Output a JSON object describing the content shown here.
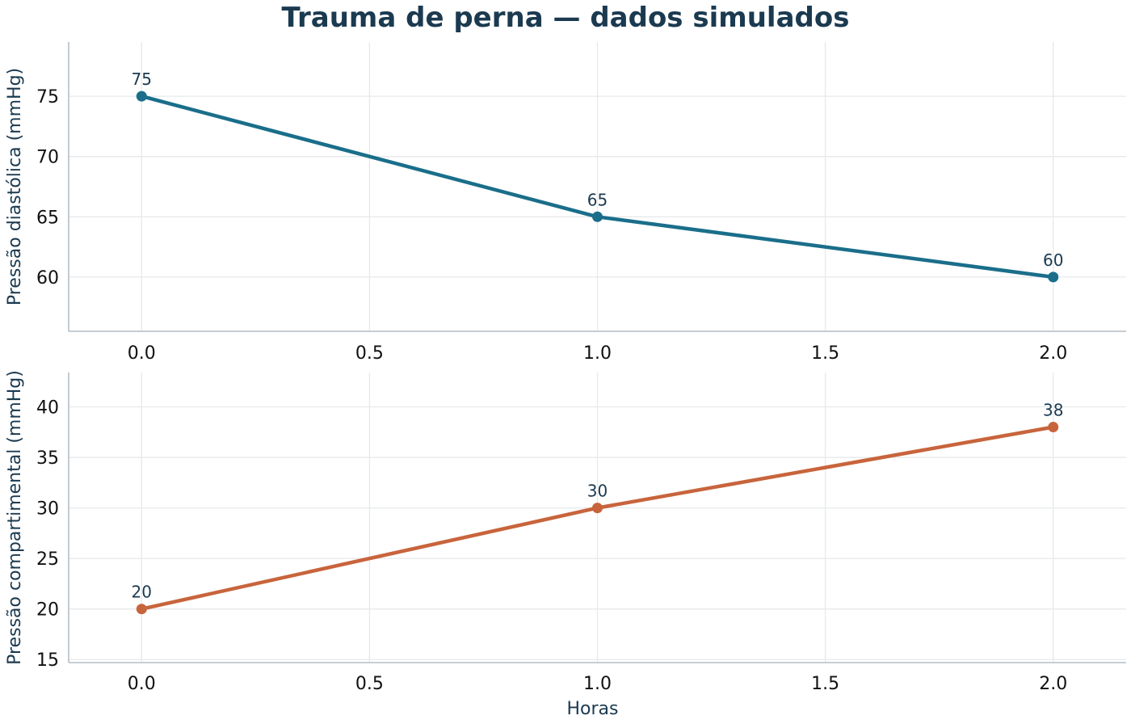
{
  "title": "Trauma de perna — dados simulados",
  "colors": {
    "title": "#1b3a50",
    "series_top": "#1a6e8a",
    "series_bottom": "#c8643c",
    "grid": "#e6e9ec",
    "spine": "#b4bec6"
  },
  "chart_data": [
    {
      "type": "line",
      "x": [
        0.0,
        1.0,
        2.0
      ],
      "series": [
        {
          "values": [
            75,
            65,
            60
          ]
        }
      ],
      "data_labels": [
        "75",
        "65",
        "60"
      ],
      "xlabel": "",
      "ylabel": "Pressão diastólica (mmHg)",
      "xlim": [
        -0.16,
        2.16
      ],
      "ylim": [
        55.5,
        79.5
      ],
      "xticks": [
        0.0,
        0.5,
        1.0,
        1.5,
        2.0
      ],
      "xtick_labels": [
        "0.0",
        "0.5",
        "1.0",
        "1.5",
        "2.0"
      ],
      "yticks": [
        60,
        65,
        70,
        75
      ],
      "ytick_labels": [
        "60",
        "65",
        "70",
        "75"
      ],
      "grid": true,
      "color": "#1a6e8a"
    },
    {
      "type": "line",
      "x": [
        0.0,
        1.0,
        2.0
      ],
      "series": [
        {
          "values": [
            20,
            30,
            38
          ]
        }
      ],
      "data_labels": [
        "20",
        "30",
        "38"
      ],
      "xlabel": "Horas",
      "ylabel": "Pressão compartimental (mmHg)",
      "xlim": [
        -0.16,
        2.16
      ],
      "ylim": [
        14.7,
        43.4
      ],
      "xticks": [
        0.0,
        0.5,
        1.0,
        1.5,
        2.0
      ],
      "xtick_labels": [
        "0.0",
        "0.5",
        "1.0",
        "1.5",
        "2.0"
      ],
      "yticks": [
        15,
        20,
        25,
        30,
        35,
        40
      ],
      "ytick_labels": [
        "15",
        "20",
        "25",
        "30",
        "35",
        "40"
      ],
      "grid": true,
      "color": "#c8643c"
    }
  ]
}
